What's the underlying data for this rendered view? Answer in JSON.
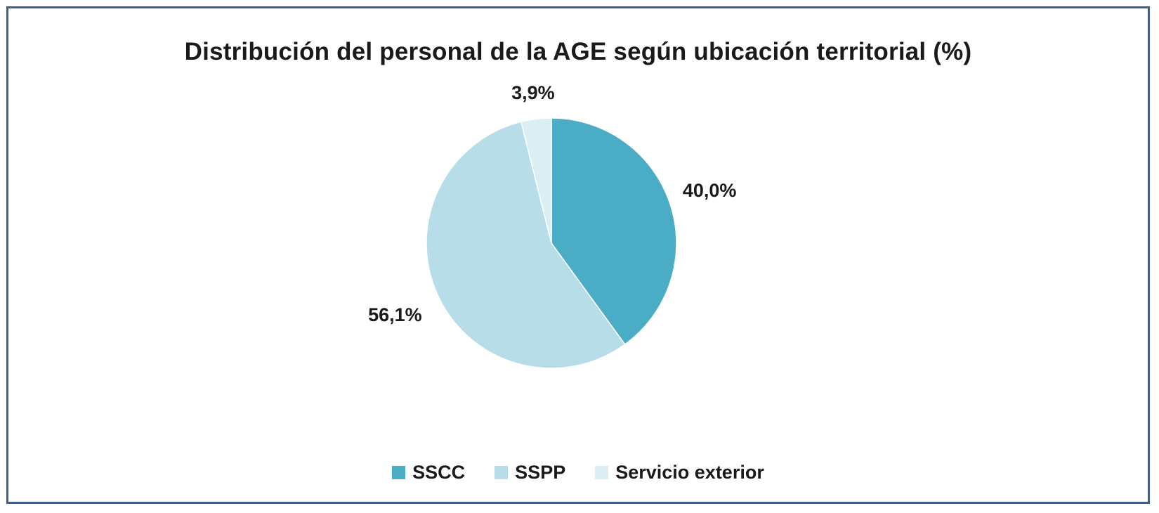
{
  "chart_data": {
    "type": "pie",
    "title": "Distribución del personal de la AGE según ubicación territorial (%)",
    "categories": [
      "SSCC",
      "SSPP",
      "Servicio exterior"
    ],
    "values": [
      40.0,
      56.1,
      3.9
    ],
    "labels": [
      "40,0%",
      "56,1%",
      "3,9%"
    ],
    "colors": [
      "#4bacc6",
      "#b7dde8",
      "#dbeef3"
    ],
    "start_angle": "12 o'clock",
    "direction": "clockwise",
    "legend": "bottom"
  }
}
